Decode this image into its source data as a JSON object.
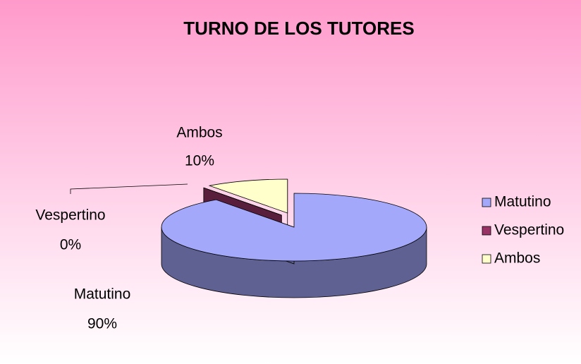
{
  "chart_data": {
    "type": "pie",
    "title": "TURNO DE LOS TUTORES",
    "categories": [
      "Matutino",
      "Vespertino",
      "Ambos"
    ],
    "values": [
      90,
      0,
      10
    ],
    "value_labels": [
      "90%",
      "0%",
      "10%"
    ],
    "colors": [
      "#a3a8fb",
      "#993366",
      "#ffffcc"
    ],
    "legend": "right"
  }
}
